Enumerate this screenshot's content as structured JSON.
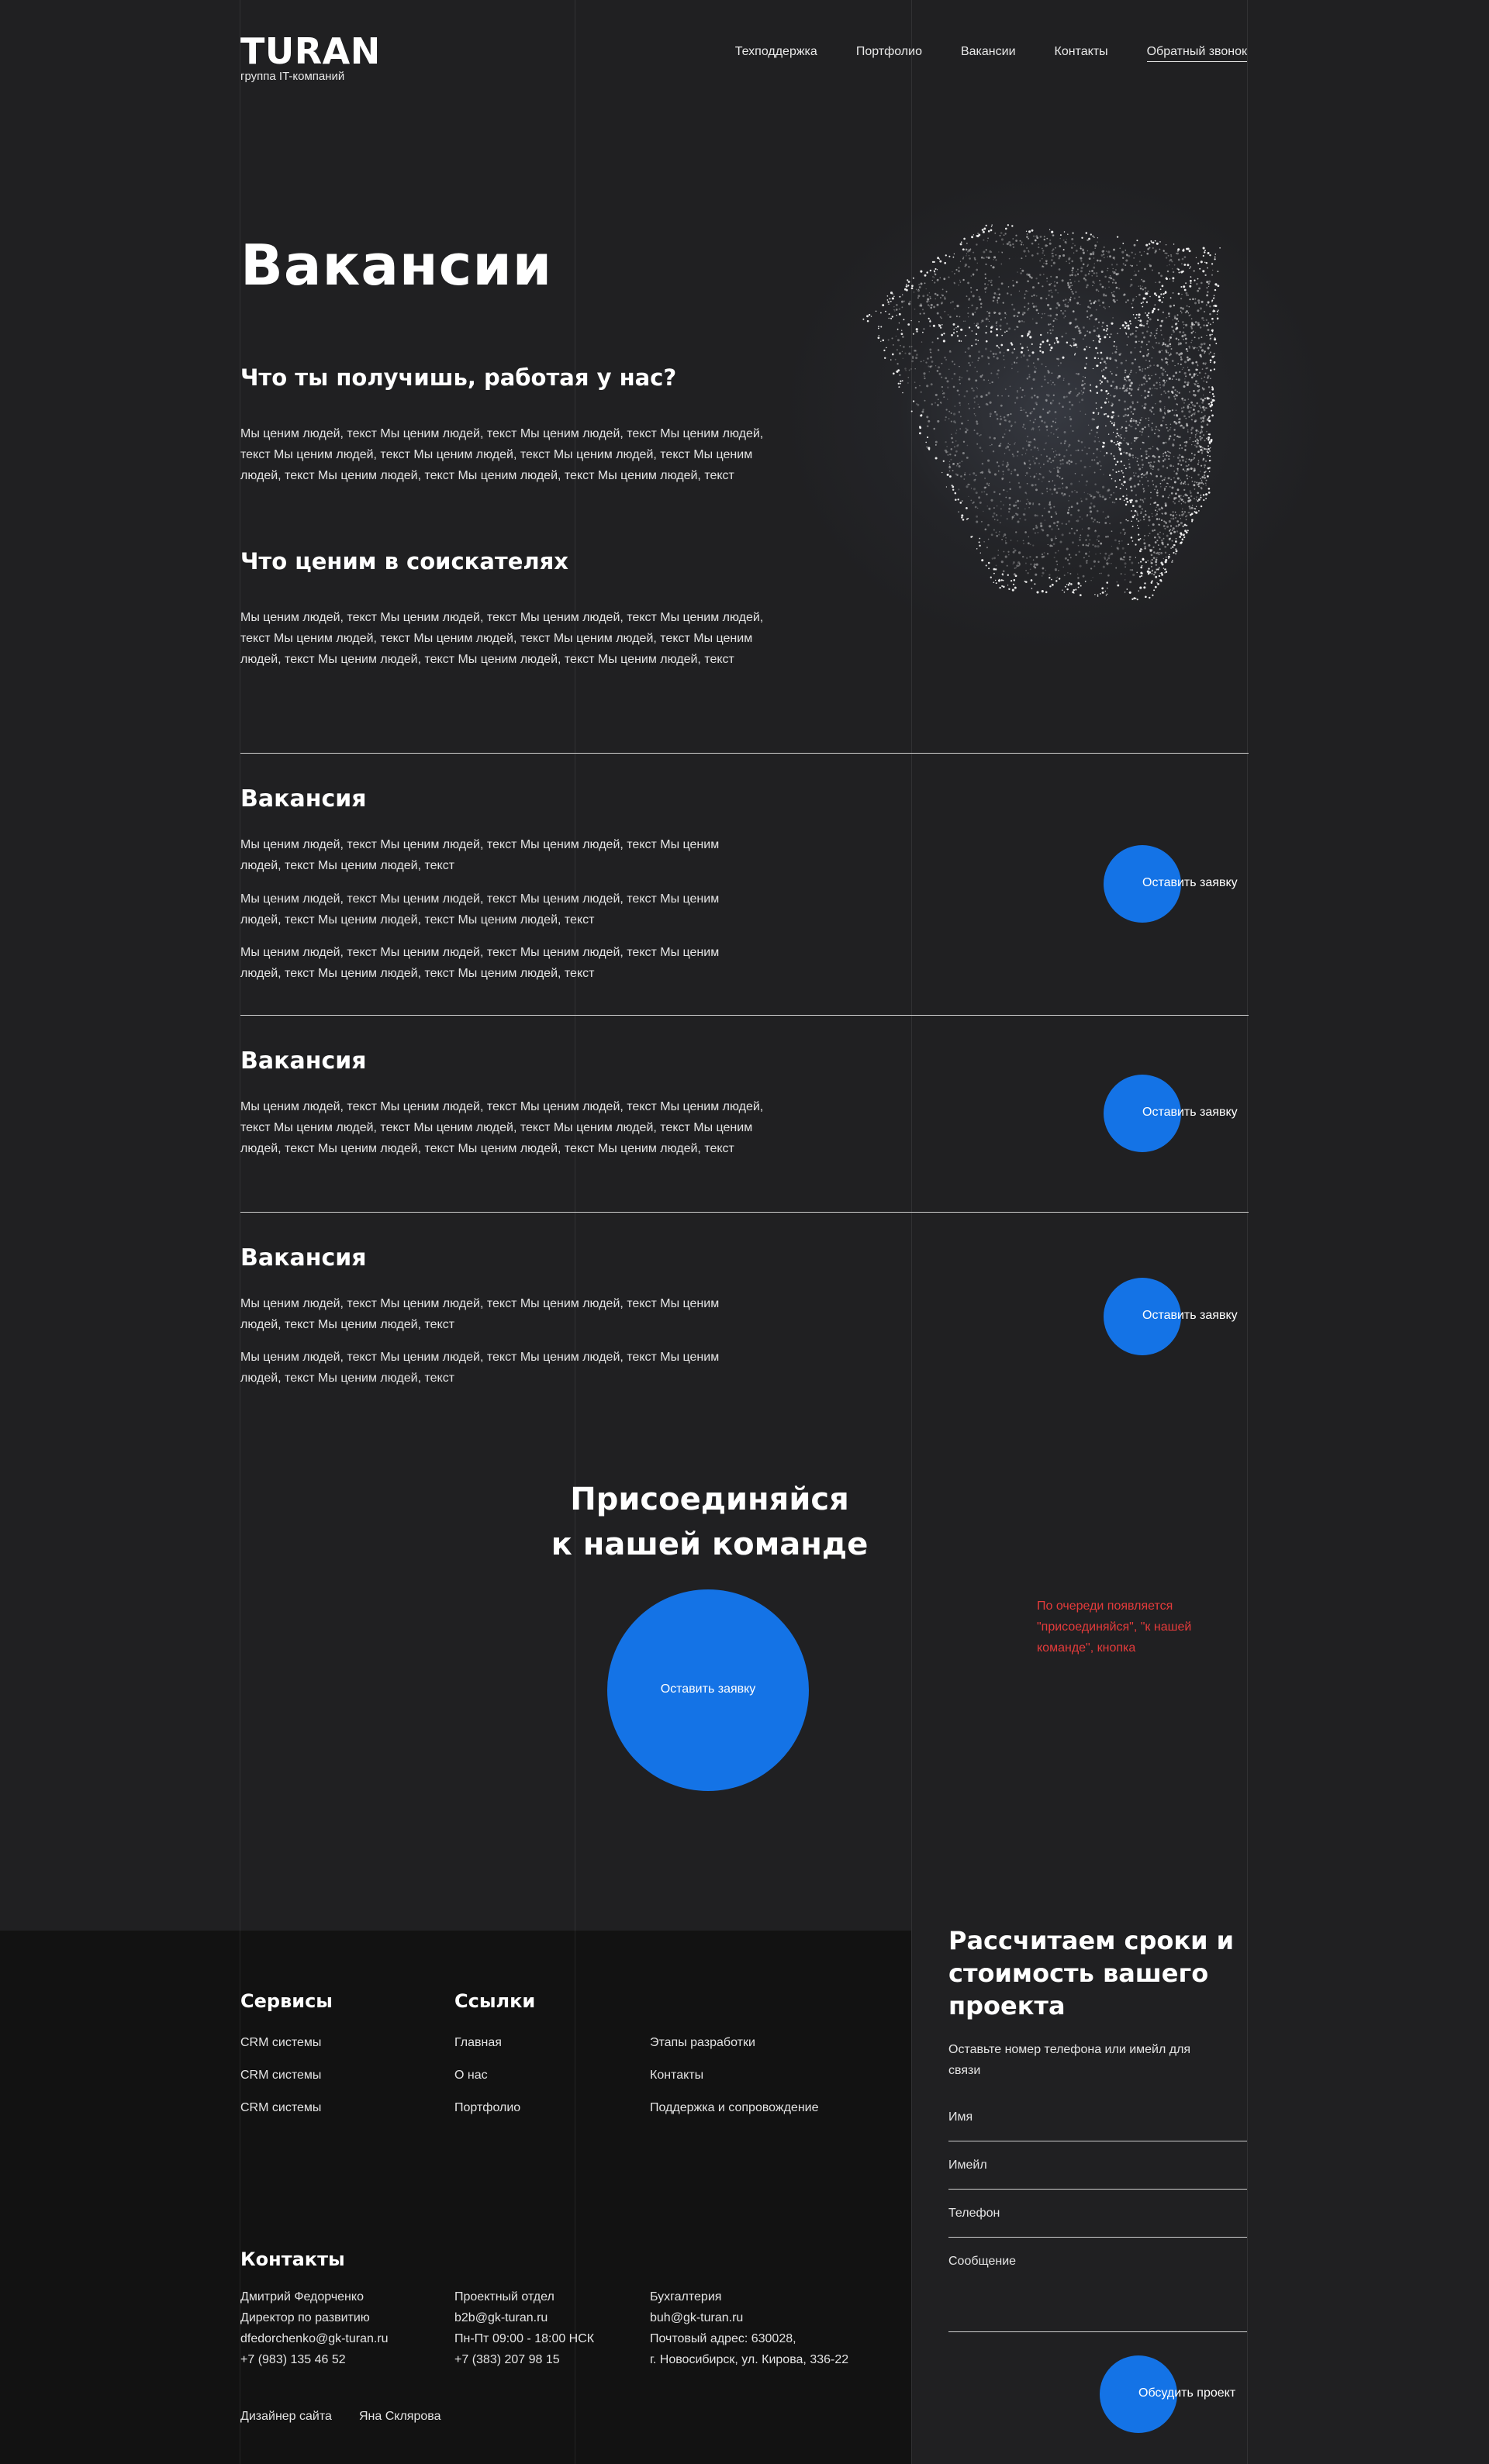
{
  "header": {
    "logo_title": "TURAN",
    "logo_subtitle": "группа IT-компаний",
    "nav": [
      "Техподдержка",
      "Портфолио",
      "Вакансии",
      "Контакты",
      "Обратный звонок"
    ]
  },
  "hero": {
    "title": "Вакансии",
    "section1_title": "Что ты получишь, работая у нас?",
    "section1_text": "Мы ценим людей, текст Мы ценим людей, текст Мы ценим людей, текст Мы ценим людей, текст Мы ценим людей, текст Мы ценим людей, текст Мы ценим людей, текст Мы ценим людей, текст Мы ценим людей, текст Мы ценим людей, текст Мы ценим людей, текст",
    "section2_title": "Что ценим в соискателях",
    "section2_text": "Мы ценим людей, текст Мы ценим людей, текст Мы ценим людей, текст Мы ценим людей, текст Мы ценим людей, текст Мы ценим людей, текст Мы ценим людей, текст Мы ценим людей, текст Мы ценим людей, текст Мы ценим людей, текст Мы ценим людей, текст"
  },
  "vacancies": [
    {
      "title": "Вакансия",
      "paragraphs": [
        "Мы ценим людей, текст Мы ценим людей, текст Мы ценим людей, текст Мы ценим людей, текст Мы ценим людей, текст",
        "Мы ценим людей, текст Мы ценим людей, текст Мы ценим людей, текст Мы ценим людей, текст Мы ценим людей, текст Мы ценим людей, текст",
        "Мы ценим людей, текст Мы ценим людей, текст Мы ценим людей, текст Мы ценим людей, текст Мы ценим людей, текст Мы ценим людей, текст"
      ],
      "button": "Оставить заявку"
    },
    {
      "title": "Вакансия",
      "paragraphs": [
        "Мы ценим людей, текст Мы ценим людей, текст Мы ценим людей, текст Мы ценим людей, текст Мы ценим людей, текст Мы ценим людей, текст Мы ценим людей, текст Мы ценим людей, текст Мы ценим людей, текст Мы ценим людей, текст Мы ценим людей, текст"
      ],
      "button": "Оставить заявку"
    },
    {
      "title": "Вакансия",
      "paragraphs": [
        "Мы ценим людей, текст Мы ценим людей, текст Мы ценим людей, текст Мы ценим людей, текст Мы ценим людей, текст",
        "Мы ценим людей, текст Мы ценим людей, текст Мы ценим людей, текст Мы ценим людей, текст Мы ценим людей, текст"
      ],
      "button": "Оставить заявку"
    }
  ],
  "join": {
    "title_line1": "Присоединяйся",
    "title_line2": "к нашей команде",
    "button": "Оставить заявку",
    "note": "По очереди появляется \"присоединяйся\", \"к нашей команде\", кнопка"
  },
  "footer": {
    "services_title": "Сервисы",
    "services": [
      "CRM системы",
      "CRM системы",
      "CRM системы"
    ],
    "links_title": "Ссылки",
    "links_col1": [
      "Главная",
      "О нас",
      "Портфолио"
    ],
    "links_col2": [
      "Этапы разработки",
      "Контакты",
      "Поддержка и сопровождение"
    ],
    "contacts_title": "Контакты",
    "contact1": [
      "Дмитрий Федорченко",
      "Директор по развитию",
      "dfedorchenko@gk-turan.ru",
      "+7 (983) 135 46 52"
    ],
    "contact2": [
      "Проектный отдел",
      "b2b@gk-turan.ru",
      "Пн-Пт 09:00 - 18:00 НСК",
      "+7 (383) 207 98 15"
    ],
    "contact3": [
      "Бухгалтерия",
      "buh@gk-turan.ru",
      "Почтовый адрес: 630028,",
      "г. Новосибирск, ул. Кирова, 336-22"
    ],
    "designer_label": "Дизайнер сайта",
    "designer_name": "Яна Склярова"
  },
  "form": {
    "title": "Рассчитаем сроки и стоимость вашего проекта",
    "subtitle": "Оставьте номер телефона или имейл для связи",
    "name_placeholder": "Имя",
    "email_placeholder": "Имейл",
    "phone_placeholder": "Телефон",
    "message_placeholder": "Сообщение",
    "submit": "Обсудить проект"
  },
  "colors": {
    "background": "#202022",
    "footer_background": "#121212",
    "accent_blue": "#1473e6",
    "note_red": "#e53b3b"
  }
}
